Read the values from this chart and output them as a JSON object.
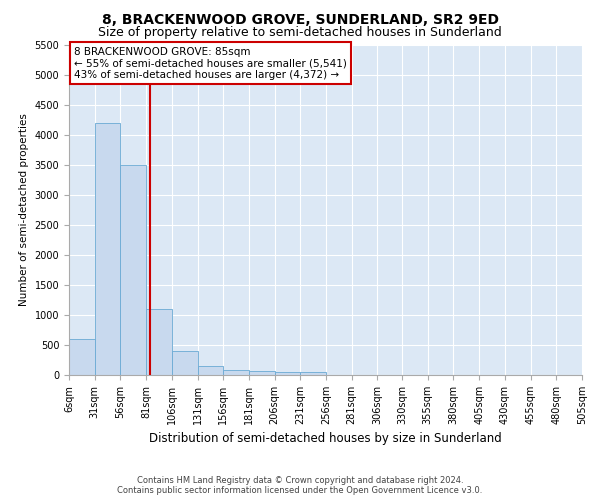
{
  "title": "8, BRACKENWOOD GROVE, SUNDERLAND, SR2 9ED",
  "subtitle": "Size of property relative to semi-detached houses in Sunderland",
  "xlabel": "Distribution of semi-detached houses by size in Sunderland",
  "ylabel": "Number of semi-detached properties",
  "footer_line1": "Contains HM Land Registry data © Crown copyright and database right 2024.",
  "footer_line2": "Contains public sector information licensed under the Open Government Licence v3.0.",
  "property_size": 85,
  "property_label": "8 BRACKENWOOD GROVE: 85sqm",
  "annotation_line2": "← 55% of semi-detached houses are smaller (5,541)",
  "annotation_line3": "43% of semi-detached houses are larger (4,372) →",
  "bar_edges": [
    6,
    31,
    56,
    81,
    106,
    131,
    156,
    181,
    206,
    231,
    256,
    281,
    306,
    330,
    355,
    380,
    405,
    430,
    455,
    480,
    505
  ],
  "bar_heights": [
    600,
    4200,
    3500,
    1100,
    400,
    150,
    80,
    60,
    55,
    55,
    0,
    0,
    0,
    0,
    0,
    0,
    0,
    0,
    0,
    0
  ],
  "bar_color": "#c8d9ee",
  "bar_edge_color": "#6aaad4",
  "vline_color": "#cc0000",
  "vline_x": 85,
  "annotation_box_color": "#cc0000",
  "ylim": [
    0,
    5500
  ],
  "xlim": [
    6,
    505
  ],
  "background_color": "#dce8f5",
  "grid_color": "#ffffff",
  "title_fontsize": 10,
  "subtitle_fontsize": 9,
  "tick_label_size": 7,
  "ylabel_fontsize": 7.5,
  "xlabel_fontsize": 8.5,
  "footer_fontsize": 6.0
}
